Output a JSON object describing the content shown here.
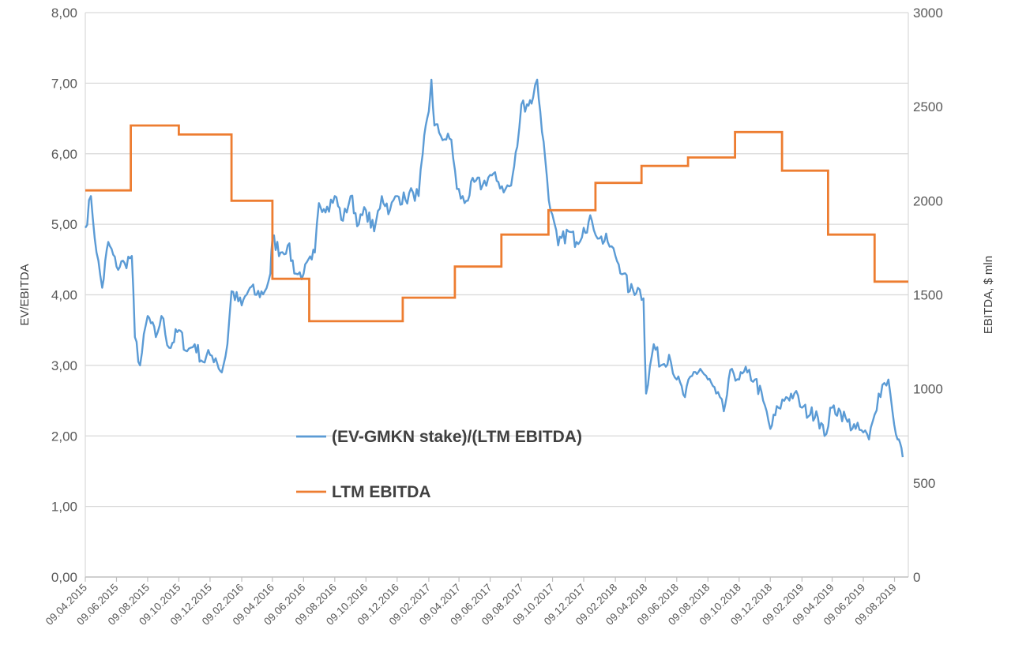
{
  "chart_data": {
    "type": "line",
    "left_axis": {
      "label": "EV/EBITDA",
      "ylim": [
        0,
        8
      ],
      "ticks": [
        "0,00",
        "1,00",
        "2,00",
        "3,00",
        "4,00",
        "5,00",
        "6,00",
        "7,00",
        "8,00"
      ]
    },
    "right_axis": {
      "label": "EBITDA, $ mln",
      "ylim": [
        0,
        3000
      ],
      "ticks": [
        "0",
        "500",
        "1000",
        "1500",
        "2000",
        "2500",
        "3000"
      ]
    },
    "x_ticks": [
      "09.04.2015",
      "09.06.2015",
      "09.08.2015",
      "09.10.2015",
      "09.12.2015",
      "09.02.2016",
      "09.04.2016",
      "09.06.2016",
      "09.08.2016",
      "09.10.2016",
      "09.12.2016",
      "09.02.2017",
      "09.04.2017",
      "09.06.2017",
      "09.08.2017",
      "09.10.2017",
      "09.12.2017",
      "09.02.2018",
      "09.04.2018",
      "09.06.2018",
      "09.08.2018",
      "09.10.2018",
      "09.12.2018",
      "09.02.2019",
      "09.04.2019",
      "09.06.2019",
      "09.08.2019"
    ],
    "grid": true,
    "legend_placement": "center",
    "series": [
      {
        "name": "(EV-GMKN stake)/(LTM EBITDA)",
        "axis": "left",
        "color": "#5B9BD5",
        "points": [
          [
            "09.04.2015",
            4.95
          ],
          [
            "20.04.2015",
            5.4
          ],
          [
            "01.05.2015",
            4.6
          ],
          [
            "12.05.2015",
            4.1
          ],
          [
            "24.05.2015",
            4.75
          ],
          [
            "09.06.2015",
            4.4
          ],
          [
            "25.06.2015",
            4.45
          ],
          [
            "09.07.2015",
            4.55
          ],
          [
            "15.07.2015",
            3.4
          ],
          [
            "25.07.2015",
            3.0
          ],
          [
            "09.08.2015",
            3.7
          ],
          [
            "25.08.2015",
            3.4
          ],
          [
            "05.09.2015",
            3.7
          ],
          [
            "20.09.2015",
            3.25
          ],
          [
            "09.10.2015",
            3.5
          ],
          [
            "25.10.2015",
            3.2
          ],
          [
            "09.11.2015",
            3.3
          ],
          [
            "25.11.2015",
            3.05
          ],
          [
            "09.12.2015",
            3.15
          ],
          [
            "20.12.2015",
            3.1
          ],
          [
            "01.01.2016",
            2.9
          ],
          [
            "12.01.2016",
            3.3
          ],
          [
            "20.01.2016",
            4.05
          ],
          [
            "09.02.2016",
            3.85
          ],
          [
            "25.02.2016",
            4.1
          ],
          [
            "09.03.2016",
            4.0
          ],
          [
            "25.03.2016",
            4.05
          ],
          [
            "05.04.2016",
            4.3
          ],
          [
            "09.04.2016",
            4.8
          ],
          [
            "25.04.2016",
            4.6
          ],
          [
            "09.05.2016",
            4.7
          ],
          [
            "25.05.2016",
            4.3
          ],
          [
            "09.06.2016",
            4.3
          ],
          [
            "25.06.2016",
            4.5
          ],
          [
            "01.07.2016",
            4.6
          ],
          [
            "09.07.2016",
            5.3
          ],
          [
            "25.07.2016",
            5.25
          ],
          [
            "09.08.2016",
            5.4
          ],
          [
            "25.08.2016",
            5.05
          ],
          [
            "09.09.2016",
            5.4
          ],
          [
            "25.09.2016",
            5.0
          ],
          [
            "09.10.2016",
            5.2
          ],
          [
            "25.10.2016",
            4.9
          ],
          [
            "09.11.2016",
            5.4
          ],
          [
            "25.11.2016",
            5.2
          ],
          [
            "09.12.2016",
            5.4
          ],
          [
            "25.12.2016",
            5.35
          ],
          [
            "09.01.2017",
            5.45
          ],
          [
            "20.01.2017",
            5.4
          ],
          [
            "28.01.2017",
            6.0
          ],
          [
            "09.02.2017",
            6.6
          ],
          [
            "14.02.2017",
            7.05
          ],
          [
            "20.02.2017",
            6.4
          ],
          [
            "01.03.2017",
            6.3
          ],
          [
            "15.03.2017",
            6.2
          ],
          [
            "25.03.2017",
            6.2
          ],
          [
            "05.04.2017",
            5.5
          ],
          [
            "20.04.2017",
            5.3
          ],
          [
            "09.05.2017",
            5.6
          ],
          [
            "25.05.2017",
            5.55
          ],
          [
            "09.06.2017",
            5.7
          ],
          [
            "25.06.2017",
            5.6
          ],
          [
            "09.07.2017",
            5.5
          ],
          [
            "20.07.2017",
            5.55
          ],
          [
            "01.08.2017",
            6.1
          ],
          [
            "09.08.2017",
            6.7
          ],
          [
            "20.08.2017",
            6.7
          ],
          [
            "01.09.2017",
            6.8
          ],
          [
            "09.09.2017",
            7.05
          ],
          [
            "15.09.2017",
            6.6
          ],
          [
            "25.09.2017",
            5.9
          ],
          [
            "05.10.2017",
            5.2
          ],
          [
            "20.10.2017",
            4.7
          ],
          [
            "09.11.2017",
            4.9
          ],
          [
            "25.11.2017",
            4.75
          ],
          [
            "09.12.2017",
            4.95
          ],
          [
            "25.12.2017",
            5.05
          ],
          [
            "09.01.2018",
            4.8
          ],
          [
            "25.01.2018",
            4.75
          ],
          [
            "09.02.2018",
            4.55
          ],
          [
            "25.02.2018",
            4.3
          ],
          [
            "09.03.2018",
            4.05
          ],
          [
            "25.03.2018",
            4.1
          ],
          [
            "05.04.2018",
            3.95
          ],
          [
            "10.04.2018",
            2.6
          ],
          [
            "25.04.2018",
            3.3
          ],
          [
            "09.05.2018",
            3.0
          ],
          [
            "25.05.2018",
            3.15
          ],
          [
            "09.06.2018",
            2.8
          ],
          [
            "25.06.2018",
            2.55
          ],
          [
            "09.07.2018",
            2.85
          ],
          [
            "25.07.2018",
            2.95
          ],
          [
            "09.08.2018",
            2.8
          ],
          [
            "25.08.2018",
            2.6
          ],
          [
            "09.09.2018",
            2.35
          ],
          [
            "25.09.2018",
            2.95
          ],
          [
            "09.10.2018",
            2.8
          ],
          [
            "25.10.2018",
            2.9
          ],
          [
            "09.11.2018",
            2.8
          ],
          [
            "25.11.2018",
            2.5
          ],
          [
            "09.12.2018",
            2.1
          ],
          [
            "25.12.2018",
            2.4
          ],
          [
            "09.01.2019",
            2.55
          ],
          [
            "25.01.2019",
            2.6
          ],
          [
            "09.02.2019",
            2.4
          ],
          [
            "25.02.2019",
            2.3
          ],
          [
            "09.03.2019",
            2.35
          ],
          [
            "25.03.2019",
            2.0
          ],
          [
            "09.04.2019",
            2.4
          ],
          [
            "25.04.2019",
            2.35
          ],
          [
            "09.05.2019",
            2.2
          ],
          [
            "25.05.2019",
            2.1
          ],
          [
            "09.06.2019",
            2.05
          ],
          [
            "20.06.2019",
            1.95
          ],
          [
            "01.07.2019",
            2.3
          ],
          [
            "09.07.2019",
            2.6
          ],
          [
            "20.07.2019",
            2.75
          ],
          [
            "28.07.2019",
            2.8
          ],
          [
            "05.08.2019",
            2.35
          ],
          [
            "15.08.2019",
            1.95
          ],
          [
            "20.08.2019",
            1.9
          ],
          [
            "25.08.2019",
            1.7
          ]
        ]
      },
      {
        "name": "LTM EBITDA",
        "axis": "right",
        "color": "#ED7D31",
        "steps": [
          [
            "09.04.2015",
            2055
          ],
          [
            "07.07.2015",
            2400
          ],
          [
            "09.10.2015",
            2352
          ],
          [
            "20.01.2016",
            2000
          ],
          [
            "09.04.2016",
            1585
          ],
          [
            "20.06.2016",
            1360
          ],
          [
            "20.12.2016",
            1485
          ],
          [
            "01.04.2017",
            1650
          ],
          [
            "01.07.2017",
            1820
          ],
          [
            "01.10.2017",
            1950
          ],
          [
            "01.01.2018",
            2095
          ],
          [
            "01.04.2018",
            2185
          ],
          [
            "01.07.2018",
            2230
          ],
          [
            "01.10.2018",
            2365
          ],
          [
            "01.01.2019",
            2160
          ],
          [
            "01.04.2019",
            1820
          ],
          [
            "01.07.2019",
            1570
          ],
          [
            "01.09.2019",
            1570
          ]
        ]
      }
    ]
  }
}
